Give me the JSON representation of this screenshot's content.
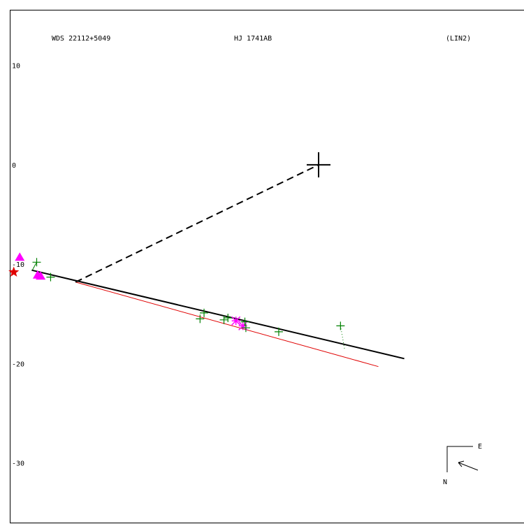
{
  "chart_data": {
    "type": "scatter",
    "header": {
      "left": "WDS 22112+5049",
      "center": "HJ 1741AB",
      "right": "(LIN2)"
    },
    "y_ticks": [
      {
        "value": 10,
        "label": "10"
      },
      {
        "value": 0,
        "label": "0"
      },
      {
        "value": -10,
        "label": "-10"
      },
      {
        "value": -20,
        "label": "-20"
      },
      {
        "value": -30,
        "label": "-30"
      }
    ],
    "axes": {
      "x_range": [
        -31,
        20.9
      ],
      "y_range": [
        -36,
        15.6
      ],
      "grid": false
    },
    "primary_origin": {
      "x": 0,
      "y": 0
    },
    "orbit_line": {
      "from": {
        "x": -28.8,
        "y": -10.6
      },
      "to": {
        "x": 8.6,
        "y": -19.5
      }
    },
    "secondary_line": {
      "from": {
        "x": -24.4,
        "y": -11.8
      },
      "to": {
        "x": 6.0,
        "y": -20.3
      }
    },
    "node_line": {
      "from": {
        "x": -24.4,
        "y": -11.8
      },
      "to": {
        "x": 0,
        "y": 0
      }
    },
    "observations_plus": [
      {
        "x": -28.3,
        "y": -9.8
      },
      {
        "x": -26.9,
        "y": -11.3
      },
      {
        "x": -11.9,
        "y": -15.5
      },
      {
        "x": -11.5,
        "y": -14.9
      },
      {
        "x": -9.5,
        "y": -15.6
      },
      {
        "x": -9.1,
        "y": -15.4
      },
      {
        "x": -7.4,
        "y": -15.8
      },
      {
        "x": -7.3,
        "y": -16.4
      },
      {
        "x": -4.0,
        "y": -16.8
      },
      {
        "x": 2.2,
        "y": -16.2
      }
    ],
    "observations_triangle": [
      {
        "x": -30.0,
        "y": -9.3
      },
      {
        "x": -28.2,
        "y": -11.1
      },
      {
        "x": -27.9,
        "y": -11.2
      }
    ],
    "observations_asterisk": [
      {
        "x": -8.3,
        "y": -15.7
      },
      {
        "x": -7.6,
        "y": -16.2
      }
    ],
    "reference_star": {
      "x": -30.6,
      "y": -10.8
    },
    "residuals": [
      {
        "from": {
          "x": 2.2,
          "y": -16.2
        },
        "to": {
          "x": 2.6,
          "y": -18.5
        }
      },
      {
        "from": {
          "x": -28.3,
          "y": -9.8
        },
        "to": {
          "x": -28.8,
          "y": -10.7
        }
      }
    ],
    "colors": {
      "axis": "#000000",
      "orbit": "#000000",
      "secondary_line": "#e00000",
      "observation_plus": "#008000",
      "observation_marker": "#ff00ff",
      "reference_star": "#e00000"
    },
    "compass": {
      "east": "E",
      "north": "N"
    }
  }
}
